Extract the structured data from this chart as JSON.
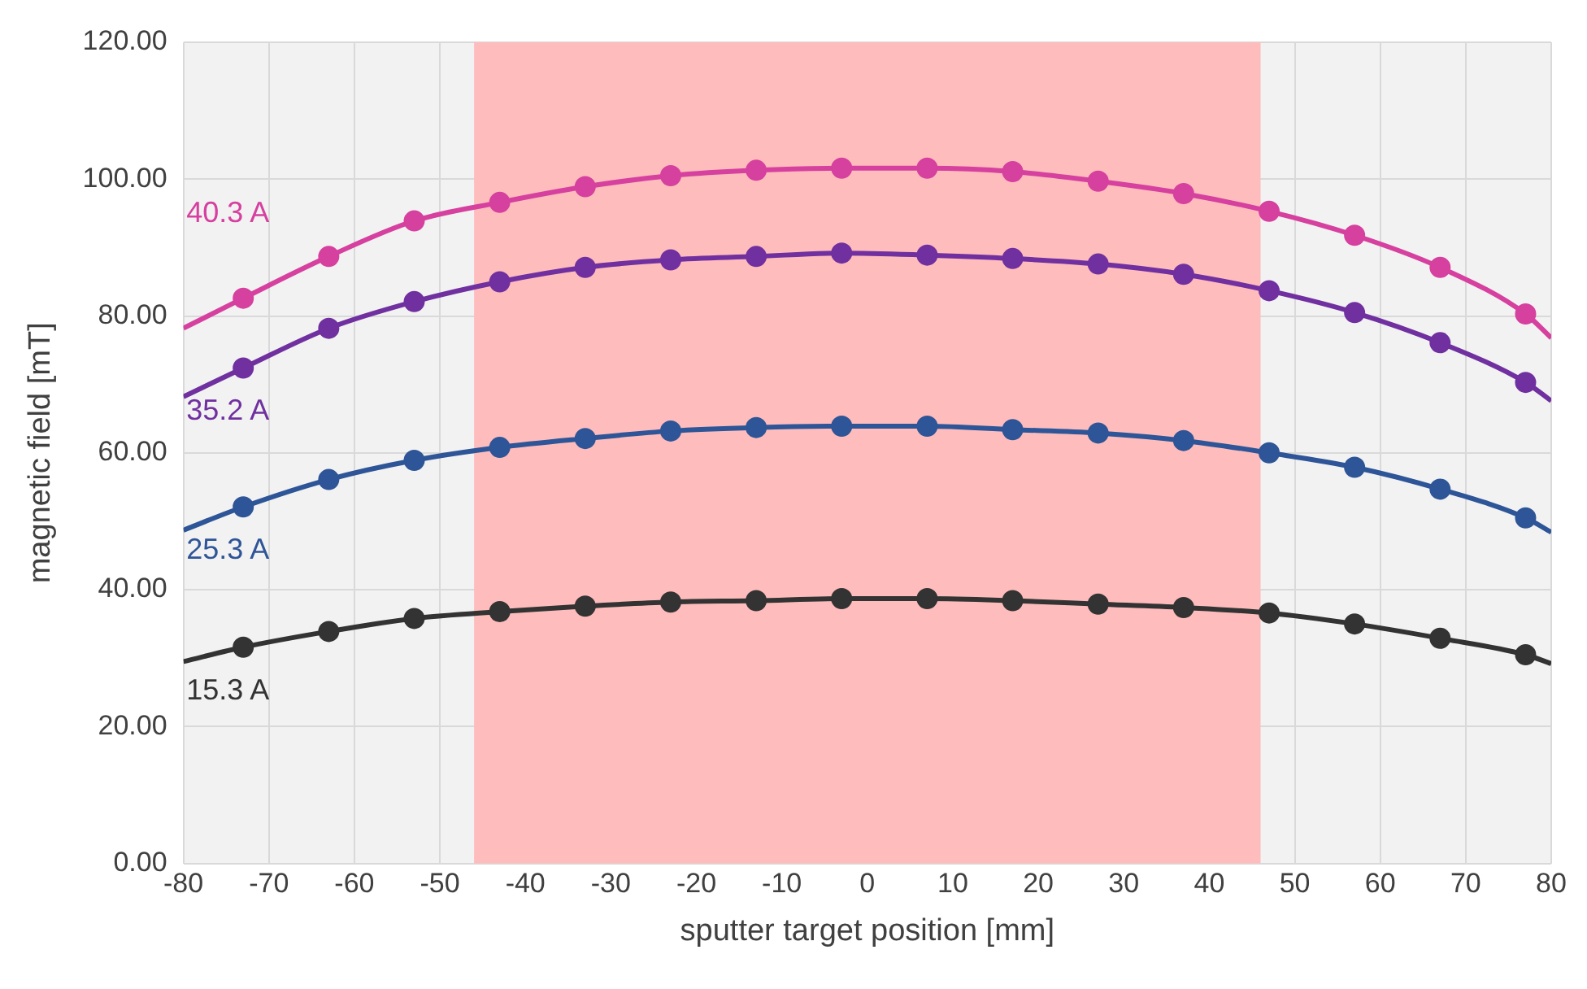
{
  "chart_data": {
    "type": "scatter",
    "xlabel": "sputter target position [mm]",
    "ylabel": "magnetic field [mT]",
    "x": [
      -73,
      -63,
      -53,
      -43,
      -33,
      -23,
      -13,
      -3,
      7,
      17,
      27,
      37,
      47,
      57,
      67,
      77
    ],
    "series": [
      {
        "name": "40.3 A",
        "color": "#d6409f",
        "values": [
          82.6,
          88.7,
          93.9,
          96.6,
          98.9,
          100.5,
          101.3,
          101.6,
          101.6,
          101.1,
          99.7,
          97.9,
          95.3,
          91.8,
          87.1,
          80.3
        ]
      },
      {
        "type": "line",
        "marker": "none",
        "color": "#d6409f",
        "x": [
          -80,
          -73,
          -63,
          -53,
          -43,
          -33,
          -23,
          -13,
          -3,
          7,
          17,
          27,
          37,
          47,
          57,
          67,
          77,
          80
        ],
        "values": [
          78.2,
          82.6,
          88.7,
          93.9,
          96.6,
          98.9,
          100.5,
          101.3,
          101.6,
          101.6,
          101.1,
          99.7,
          97.9,
          95.3,
          91.8,
          87.1,
          80.3,
          76.8
        ]
      },
      {
        "name": "35.2 A",
        "color": "#7030a0",
        "values": [
          72.4,
          78.2,
          82.1,
          85,
          87.1,
          88.2,
          88.7,
          89.2,
          88.9,
          88.4,
          87.6,
          86.1,
          83.7,
          80.5,
          76.1,
          70.3
        ]
      },
      {
        "type": "line",
        "marker": "none",
        "color": "#7030a0",
        "x": [
          -80,
          -73,
          -63,
          -53,
          -43,
          -33,
          -23,
          -13,
          -3,
          7,
          17,
          27,
          37,
          47,
          57,
          67,
          77,
          80
        ],
        "values": [
          68.2,
          72.4,
          78.2,
          82.1,
          85,
          87.1,
          88.2,
          88.7,
          89.2,
          88.9,
          88.4,
          87.6,
          86.1,
          83.7,
          80.5,
          76.1,
          70.3,
          67.6
        ]
      },
      {
        "name": "25.3 A",
        "color": "#2e5597",
        "values": [
          52.1,
          56.1,
          58.9,
          60.8,
          62.1,
          63.2,
          63.7,
          63.9,
          63.9,
          63.4,
          62.9,
          61.8,
          60,
          57.9,
          54.7,
          50.5
        ]
      },
      {
        "type": "line",
        "marker": "none",
        "color": "#2e5597",
        "x": [
          -80,
          -73,
          -63,
          -53,
          -43,
          -33,
          -23,
          -13,
          -3,
          7,
          17,
          27,
          37,
          47,
          57,
          67,
          77,
          80
        ],
        "values": [
          48.7,
          52.1,
          56.1,
          58.9,
          60.8,
          62.1,
          63.2,
          63.7,
          63.9,
          63.9,
          63.4,
          62.9,
          61.8,
          60,
          57.9,
          54.7,
          50.5,
          48.4
        ]
      },
      {
        "name": "15.3 A",
        "color": "#333333",
        "values": [
          31.6,
          33.9,
          35.8,
          36.8,
          37.6,
          38.2,
          38.4,
          38.7,
          38.7,
          38.4,
          37.9,
          37.4,
          36.6,
          35,
          32.9,
          30.5
        ]
      },
      {
        "type": "line",
        "marker": "none",
        "color": "#333333",
        "x": [
          -80,
          -73,
          -63,
          -53,
          -43,
          -33,
          -23,
          -13,
          -3,
          7,
          17,
          27,
          37,
          47,
          57,
          67,
          77,
          80
        ],
        "values": [
          29.5,
          31.6,
          33.9,
          35.8,
          36.8,
          37.6,
          38.2,
          38.4,
          38.7,
          38.7,
          38.4,
          37.9,
          37.4,
          36.6,
          35,
          32.9,
          30.5,
          29.2
        ]
      }
    ],
    "bands": [
      {
        "axis": "x",
        "from": -46,
        "to": 46,
        "color": "#ffbcbc"
      }
    ],
    "xlim": [
      -80,
      80
    ],
    "xticks": [
      -80,
      -70,
      -60,
      -50,
      -40,
      -30,
      -20,
      -10,
      0,
      10,
      20,
      30,
      40,
      50,
      60,
      70,
      80
    ],
    "ylim": [
      0,
      120
    ],
    "yticks": [
      {
        "value": 0,
        "label": "0.00"
      },
      {
        "value": 20,
        "label": "20.00"
      },
      {
        "value": 40,
        "label": "40.00"
      },
      {
        "value": 60,
        "label": "60.00"
      },
      {
        "value": 80,
        "label": "80.00"
      },
      {
        "value": 100,
        "label": "100.00"
      },
      {
        "value": 120,
        "label": "120.00"
      }
    ],
    "grid": true,
    "legend": false,
    "marker": "circle"
  }
}
